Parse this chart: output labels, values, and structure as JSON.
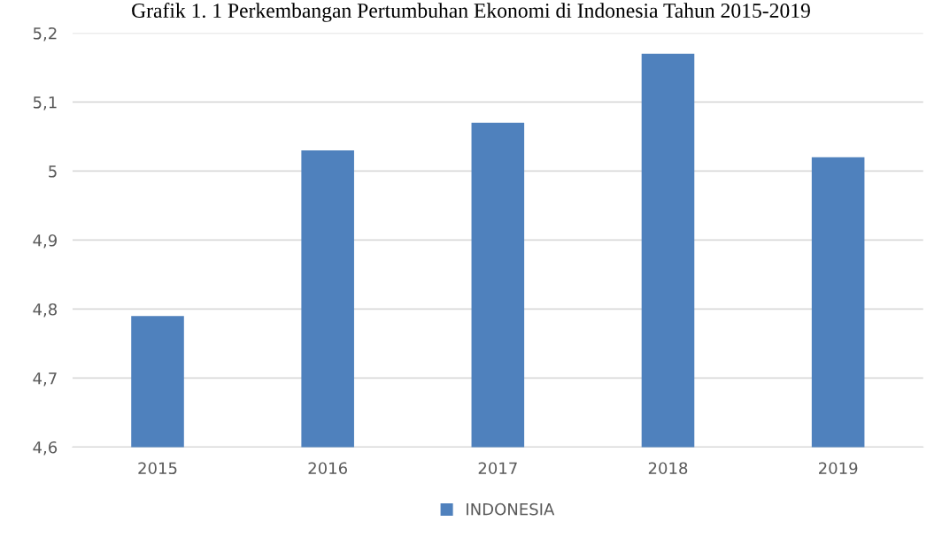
{
  "chart_data": {
    "type": "bar",
    "title": "Grafik 1. 1 Perkembangan Pertumbuhan Ekonomi di Indonesia Tahun 2015-2019",
    "categories": [
      "2015",
      "2016",
      "2017",
      "2018",
      "2019"
    ],
    "series": [
      {
        "name": "INDONESIA",
        "color": "#4f81bd",
        "values": [
          4.79,
          5.03,
          5.07,
          5.17,
          5.02
        ]
      }
    ],
    "ylim": [
      4.6,
      5.2
    ],
    "yticks": [
      {
        "value": 4.6,
        "label": "4,6"
      },
      {
        "value": 4.7,
        "label": "4,7"
      },
      {
        "value": 4.8,
        "label": "4,8"
      },
      {
        "value": 4.9,
        "label": "4,9"
      },
      {
        "value": 5,
        "label": "5"
      },
      {
        "value": 5.1,
        "label": "5,1"
      },
      {
        "value": 5.2,
        "label": "5,2"
      }
    ],
    "grid": "y",
    "legend": "bottom"
  }
}
